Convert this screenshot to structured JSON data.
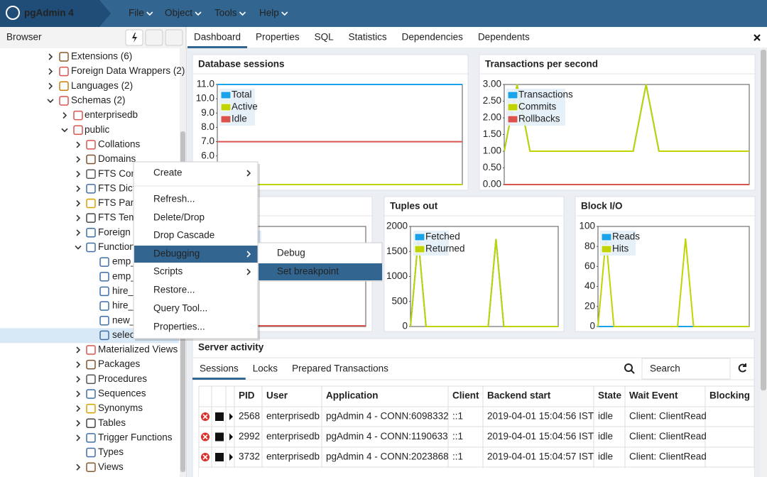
{
  "header": {
    "app_title": "pgAdmin 4",
    "menu": [
      "File",
      "Object",
      "Tools",
      "Help"
    ]
  },
  "browser": {
    "title": "Browser",
    "tree": [
      "Extensions (6)",
      "Foreign Data Wrappers (2)",
      "Languages (2)",
      "Schemas (2)",
      "enterprisedb",
      "public",
      "Collations",
      "Domains",
      "FTS Conf",
      "FTS Dicti",
      "FTS Pars",
      "FTS Tem",
      "Foreign T",
      "Function",
      "emp_",
      "emp_",
      "hire_",
      "hire_s",
      "new_",
      "selec",
      "Materialized Views",
      "Packages",
      "Procedures",
      "Sequences",
      "Synonyms",
      "Tables",
      "Trigger Functions",
      "Types",
      "Views"
    ]
  },
  "tabs": [
    "Dashboard",
    "Properties",
    "SQL",
    "Statistics",
    "Dependencies",
    "Dependents"
  ],
  "context_menu": {
    "items": [
      "Create",
      "Refresh...",
      "Delete/Drop",
      "Drop Cascade",
      "Debugging",
      "Scripts",
      "Restore...",
      "Query Tool...",
      "Properties..."
    ],
    "submenu": [
      "Debug",
      "Set breakpoint"
    ]
  },
  "charts": [
    {
      "type": "line",
      "title": "Database sessions",
      "ylim": [
        4,
        11
      ],
      "yticks": [
        {
          "value": 6,
          "label": "6.0"
        },
        {
          "value": 7,
          "label": "7.0"
        },
        {
          "value": 8,
          "label": "8.0"
        },
        {
          "value": 9,
          "label": "9.0"
        },
        {
          "value": 10,
          "label": "10.0"
        },
        {
          "value": 11,
          "label": "11.0"
        }
      ],
      "series": [
        {
          "name": "Total",
          "color": "#1aa3e8",
          "values": [
            11,
            11,
            11,
            11,
            11,
            11,
            11,
            11,
            11,
            11,
            11,
            11,
            11,
            11,
            11,
            11,
            11,
            11,
            11,
            11
          ]
        },
        {
          "name": "Active",
          "color": "#bfd400",
          "values": [
            4,
            4,
            4,
            4,
            4,
            4,
            4,
            4,
            4,
            4,
            4,
            4,
            4,
            4,
            4,
            4,
            4,
            4,
            4,
            4
          ]
        },
        {
          "name": "Idle",
          "color": "#d9534f",
          "values": [
            7,
            7,
            7,
            7,
            7,
            7,
            7,
            7,
            7,
            7,
            7,
            7,
            7,
            7,
            7,
            7,
            7,
            7,
            7,
            7
          ]
        }
      ]
    },
    {
      "type": "line",
      "title": "Transactions per second",
      "ylim": [
        0,
        3
      ],
      "yticks": [
        {
          "value": 0,
          "label": "0.00"
        },
        {
          "value": 0.5,
          "label": "0.50"
        },
        {
          "value": 1,
          "label": "1.00"
        },
        {
          "value": 1.5,
          "label": "1.50"
        },
        {
          "value": 2,
          "label": "2.00"
        },
        {
          "value": 2.5,
          "label": "2.50"
        },
        {
          "value": 3,
          "label": "3.00"
        }
      ],
      "series": [
        {
          "name": "Transactions",
          "color": "#1aa3e8",
          "values": [
            1,
            3,
            1,
            1,
            1,
            1,
            1,
            1,
            1,
            1,
            1,
            3,
            1,
            1,
            1,
            1,
            1,
            1,
            1,
            1
          ]
        },
        {
          "name": "Commits",
          "color": "#bfd400",
          "values": [
            1,
            3,
            1,
            1,
            1,
            1,
            1,
            1,
            1,
            1,
            1,
            3,
            1,
            1,
            1,
            1,
            1,
            1,
            1,
            1
          ]
        },
        {
          "name": "Rollbacks",
          "color": "#d9534f",
          "values": [
            0,
            0,
            0,
            0,
            0,
            0,
            0,
            0,
            0,
            0,
            0,
            0,
            0,
            0,
            0,
            0,
            0,
            0,
            0,
            0
          ]
        }
      ]
    },
    {
      "type": "line",
      "title": "Tuples out",
      "ylim": [
        0,
        2000
      ],
      "yticks": [
        0,
        500,
        1000,
        1500,
        2000
      ],
      "series": [
        {
          "name": "Fetched",
          "color": "#1aa3e8",
          "values": [
            0,
            1750,
            0,
            0,
            0,
            0,
            0,
            0,
            0,
            0,
            0,
            1750,
            0,
            0,
            0,
            0,
            0,
            0,
            0,
            0
          ]
        },
        {
          "name": "Returned",
          "color": "#bfd400",
          "values": [
            0,
            1750,
            0,
            0,
            0,
            0,
            0,
            0,
            0,
            0,
            0,
            1750,
            0,
            0,
            0,
            0,
            0,
            0,
            0,
            0
          ]
        }
      ]
    },
    {
      "type": "line",
      "title": "Block I/O",
      "ylim": [
        0,
        100
      ],
      "yticks": [
        0,
        20,
        40,
        60,
        80,
        100
      ],
      "series": [
        {
          "name": "Reads",
          "color": "#1aa3e8",
          "values": [
            0,
            0,
            0,
            0,
            0,
            0,
            0,
            0,
            0,
            0,
            0,
            0,
            0,
            0,
            0,
            0,
            0,
            0,
            0,
            0
          ]
        },
        {
          "name": "Hits",
          "color": "#bfd400",
          "values": [
            0,
            88,
            0,
            0,
            0,
            0,
            0,
            0,
            0,
            0,
            0,
            88,
            0,
            0,
            0,
            0,
            0,
            0,
            0,
            0
          ]
        }
      ]
    }
  ],
  "server_activity": {
    "title": "Server activity",
    "tabs": [
      "Sessions",
      "Locks",
      "Prepared Transactions"
    ],
    "search_placeholder": "Search",
    "columns": [
      "PID",
      "User",
      "Application",
      "Client",
      "Backend start",
      "State",
      "Wait Event",
      "Blocking"
    ],
    "rows": [
      [
        2568,
        "enterprisedb",
        "pgAdmin 4 - CONN:6098332",
        "::1",
        "2019-04-01 15:04:56 IST",
        "idle",
        "Client: ClientRead"
      ],
      [
        2992,
        "enterprisedb",
        "pgAdmin 4 - CONN:1190633",
        "::1",
        "2019-04-01 15:04:56 IST",
        "idle",
        "Client: ClientRead"
      ],
      [
        3732,
        "enterprisedb",
        "pgAdmin 4 - CONN:2023868",
        "::1",
        "2019-04-01 15:04:57 IST",
        "idle",
        "Client: ClientRead"
      ]
    ]
  }
}
